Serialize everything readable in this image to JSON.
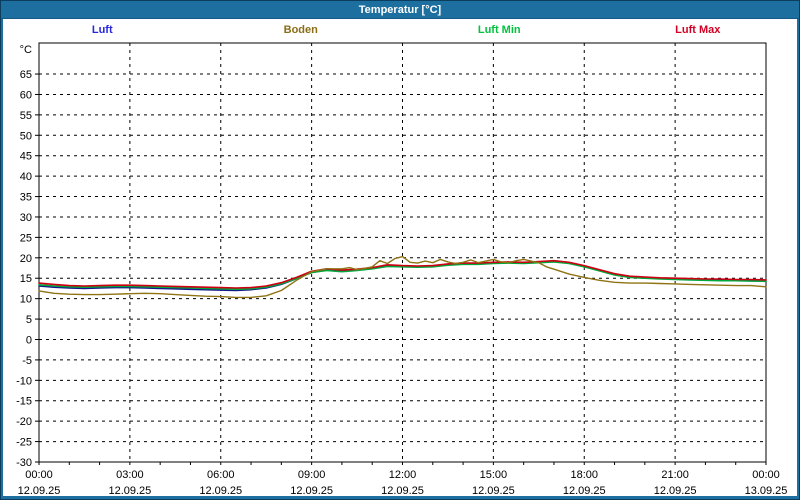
{
  "window": {
    "title": "Temperatur [°C]"
  },
  "colors": {
    "frame": "#1d6f9f",
    "frame_border": "#0c3d5c",
    "plot_background": "#ffffff",
    "axis": "#000000"
  },
  "chart_data": {
    "type": "line",
    "title": "Temperatur [°C]",
    "y_unit": "°C",
    "ylim": [
      -30,
      72.6
    ],
    "yticks": {
      "min": -30,
      "max": 65,
      "step": 5
    },
    "x_range_hours": [
      0,
      24
    ],
    "x_major_step_h": 3,
    "x_minor_step_h": 1,
    "grid": {
      "on": true,
      "dash": "3 4",
      "color": "#000000"
    },
    "legend_position": "top",
    "x_ticks": [
      {
        "h": 0,
        "time": "00:00",
        "date": "12.09.25"
      },
      {
        "h": 3,
        "time": "03:00",
        "date": "12.09.25"
      },
      {
        "h": 6,
        "time": "06:00",
        "date": "12.09.25"
      },
      {
        "h": 9,
        "time": "09:00",
        "date": "12.09.25"
      },
      {
        "h": 12,
        "time": "12:00",
        "date": "12.09.25"
      },
      {
        "h": 15,
        "time": "15:00",
        "date": "12.09.25"
      },
      {
        "h": 18,
        "time": "18:00",
        "date": "12.09.25"
      },
      {
        "h": 21,
        "time": "21:00",
        "date": "12.09.25"
      },
      {
        "h": 24,
        "time": "00:00",
        "date": "13.09.25"
      }
    ],
    "draw_order": [
      0,
      2,
      3,
      1
    ],
    "series": [
      {
        "name": "Luft",
        "legend_color": "#2626dd",
        "color": "#14148c",
        "width": 1.6,
        "x_start": 0,
        "x_step": 0.5,
        "values": [
          13.1,
          12.8,
          12.6,
          12.5,
          12.6,
          12.7,
          12.7,
          12.6,
          12.5,
          12.4,
          12.3,
          12.2,
          12.1,
          12.0,
          12.2,
          12.6,
          13.5,
          14.9,
          16.4,
          17.0,
          16.7,
          17.0,
          17.4,
          18.0,
          17.9,
          17.8,
          17.9,
          18.3,
          18.5,
          18.5,
          18.7,
          18.8,
          18.7,
          18.9,
          19.1,
          18.7,
          17.9,
          16.9,
          15.9,
          15.3,
          15.1,
          14.9,
          14.8,
          14.7,
          14.6,
          14.5,
          14.5,
          14.4,
          14.3
        ]
      },
      {
        "name": "Boden",
        "legend_color": "#8a6d14",
        "color": "#8f7314",
        "width": 1.4,
        "x": [
          0,
          0.5,
          1,
          1.5,
          2,
          2.5,
          3,
          3.5,
          4,
          4.5,
          5,
          5.5,
          6,
          6.5,
          7,
          7.5,
          8,
          8.5,
          9,
          9.5,
          10,
          10.25,
          10.5,
          10.75,
          11,
          11.25,
          11.5,
          11.75,
          12,
          12.25,
          12.5,
          12.75,
          13,
          13.25,
          13.5,
          13.75,
          14,
          14.25,
          14.5,
          14.75,
          15,
          15.25,
          15.5,
          15.75,
          16,
          16.25,
          16.5,
          16.75,
          17,
          17.5,
          18,
          18.5,
          19,
          19.5,
          20,
          20.5,
          21,
          21.5,
          22,
          22.5,
          23,
          23.5,
          24
        ],
        "values": [
          11.9,
          11.3,
          11.1,
          11.0,
          11.0,
          11.1,
          11.2,
          11.3,
          11.2,
          11.0,
          10.8,
          10.6,
          10.5,
          10.3,
          10.3,
          10.7,
          12.0,
          14.5,
          16.6,
          17.3,
          17.3,
          17.6,
          17.1,
          17.4,
          17.8,
          19.3,
          18.6,
          19.8,
          20.3,
          18.9,
          18.7,
          19.2,
          18.8,
          19.6,
          19.0,
          18.6,
          18.9,
          19.5,
          18.8,
          19.2,
          19.6,
          19.0,
          18.8,
          19.3,
          19.6,
          19.2,
          18.8,
          17.8,
          17.2,
          16.0,
          15.2,
          14.5,
          14.0,
          13.8,
          13.8,
          13.7,
          13.6,
          13.5,
          13.4,
          13.3,
          13.2,
          13.2,
          12.9
        ]
      },
      {
        "name": "Luft Min",
        "legend_color": "#00c23c",
        "color": "#00a83c",
        "width": 1.6,
        "x_start": 0,
        "x_step": 0.5,
        "values": [
          13.4,
          13.1,
          12.9,
          12.8,
          12.9,
          13.0,
          13.0,
          12.9,
          12.8,
          12.7,
          12.6,
          12.5,
          12.4,
          12.3,
          12.4,
          12.8,
          13.6,
          14.9,
          16.4,
          16.9,
          16.6,
          16.9,
          17.3,
          17.9,
          17.8,
          17.7,
          17.8,
          18.2,
          18.4,
          18.4,
          18.6,
          18.7,
          18.6,
          18.8,
          19.0,
          18.6,
          17.8,
          16.8,
          15.8,
          15.2,
          15.0,
          14.8,
          14.7,
          14.6,
          14.5,
          14.4,
          14.4,
          14.3,
          14.25
        ]
      },
      {
        "name": "Luft Max",
        "legend_color": "#d40024",
        "color": "#cc0011",
        "width": 1.6,
        "x_start": 0,
        "x_step": 0.5,
        "values": [
          13.8,
          13.5,
          13.2,
          13.1,
          13.2,
          13.3,
          13.3,
          13.2,
          13.1,
          13.0,
          12.9,
          12.8,
          12.7,
          12.6,
          12.7,
          13.1,
          13.9,
          15.2,
          16.7,
          17.3,
          17.0,
          17.2,
          17.6,
          18.3,
          18.1,
          18.0,
          18.1,
          18.5,
          18.7,
          18.7,
          18.9,
          19.0,
          18.9,
          19.1,
          19.3,
          18.9,
          18.1,
          17.1,
          16.1,
          15.5,
          15.3,
          15.1,
          15.0,
          14.9,
          14.8,
          14.8,
          14.7,
          14.7,
          14.6
        ]
      }
    ]
  }
}
